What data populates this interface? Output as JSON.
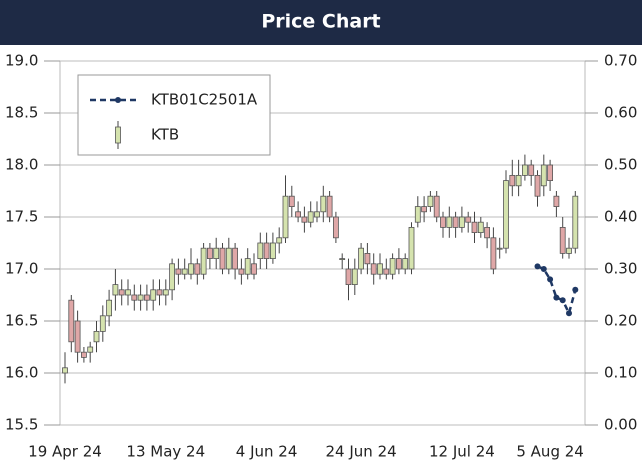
{
  "chart_data": {
    "type": "candlestick",
    "title": "Price Chart",
    "categories": [
      "19 Apr 24",
      null,
      null,
      null,
      null,
      null,
      null,
      null,
      null,
      null,
      null,
      null,
      null,
      null,
      null,
      null,
      "13 May 24",
      null,
      null,
      null,
      null,
      null,
      null,
      null,
      null,
      null,
      null,
      null,
      null,
      null,
      null,
      null,
      "4 Jun 24",
      null,
      null,
      null,
      null,
      null,
      null,
      null,
      null,
      null,
      null,
      null,
      null,
      null,
      null,
      "24 Jun 24",
      null,
      null,
      null,
      null,
      null,
      null,
      null,
      null,
      null,
      null,
      null,
      null,
      null,
      null,
      null,
      "12 Jul 24",
      null,
      null,
      null,
      null,
      null,
      null,
      null,
      null,
      null,
      null,
      null,
      null,
      null,
      "5 Aug 24",
      null,
      null,
      null,
      null
    ],
    "series": [
      {
        "name": "KTB01C2501A",
        "type": "line",
        "axis": "y2",
        "color": "#1f3864",
        "values": [
          null,
          null,
          null,
          null,
          null,
          null,
          null,
          null,
          null,
          null,
          null,
          null,
          null,
          null,
          null,
          null,
          null,
          null,
          null,
          null,
          null,
          null,
          null,
          null,
          null,
          null,
          null,
          null,
          null,
          null,
          null,
          null,
          null,
          null,
          null,
          null,
          null,
          null,
          null,
          null,
          null,
          null,
          null,
          null,
          null,
          null,
          null,
          null,
          null,
          null,
          null,
          null,
          null,
          null,
          null,
          null,
          null,
          null,
          null,
          null,
          null,
          null,
          null,
          null,
          null,
          null,
          null,
          null,
          null,
          null,
          null,
          null,
          null,
          null,
          null,
          0.305,
          0.3,
          0.28,
          0.245,
          0.24,
          0.215,
          0.26
        ]
      },
      {
        "name": "KTB",
        "type": "candlestick",
        "color_up": "#d5e3ae",
        "color_down": "#dfa7a7",
        "open": [
          16.0,
          16.7,
          16.5,
          16.2,
          16.2,
          16.3,
          16.4,
          16.55,
          16.75,
          16.8,
          16.75,
          16.75,
          16.7,
          16.75,
          16.7,
          16.8,
          16.75,
          16.8,
          17.0,
          16.95,
          16.95,
          17.05,
          16.95,
          17.2,
          17.1,
          17.2,
          17.0,
          17.2,
          17.0,
          16.95,
          17.05,
          17.1,
          17.25,
          17.1,
          17.25,
          17.3,
          17.7,
          17.55,
          17.5,
          17.45,
          17.5,
          17.55,
          17.7,
          17.5,
          17.1,
          17.0,
          16.85,
          17.0,
          17.15,
          17.05,
          16.95,
          17.0,
          16.95,
          17.1,
          17.0,
          17.0,
          17.45,
          17.6,
          17.6,
          17.7,
          17.5,
          17.4,
          17.5,
          17.4,
          17.5,
          17.45,
          17.35,
          17.4,
          17.3,
          17.2,
          17.2,
          17.9,
          17.8,
          17.9,
          18.0,
          17.9,
          17.8,
          18.0,
          17.7,
          17.4,
          17.15,
          17.2
        ],
        "high": [
          16.2,
          16.75,
          16.6,
          16.25,
          16.3,
          16.5,
          16.65,
          16.8,
          17.0,
          16.9,
          16.9,
          16.85,
          16.85,
          16.85,
          16.9,
          16.9,
          16.9,
          17.1,
          17.1,
          17.1,
          17.2,
          17.1,
          17.25,
          17.25,
          17.3,
          17.25,
          17.3,
          17.25,
          17.1,
          17.2,
          17.15,
          17.35,
          17.35,
          17.35,
          17.4,
          17.9,
          17.8,
          17.65,
          17.6,
          17.65,
          17.65,
          17.8,
          17.75,
          17.55,
          17.15,
          17.1,
          17.1,
          17.25,
          17.25,
          17.15,
          17.15,
          17.1,
          17.15,
          17.2,
          17.15,
          17.45,
          17.7,
          17.7,
          17.75,
          17.75,
          17.55,
          17.6,
          17.55,
          17.6,
          17.55,
          17.55,
          17.5,
          17.45,
          17.4,
          17.3,
          17.95,
          18.05,
          18.05,
          18.1,
          18.05,
          17.95,
          18.1,
          18.05,
          17.75,
          17.5,
          17.3,
          17.75
        ],
        "low": [
          15.9,
          16.2,
          16.1,
          16.1,
          16.1,
          16.2,
          16.3,
          16.45,
          16.6,
          16.65,
          16.65,
          16.6,
          16.6,
          16.6,
          16.6,
          16.65,
          16.65,
          16.7,
          16.85,
          16.9,
          16.9,
          16.85,
          16.9,
          17.0,
          17.0,
          16.95,
          16.95,
          16.9,
          16.85,
          16.9,
          16.9,
          17.0,
          17.0,
          17.05,
          17.15,
          17.25,
          17.5,
          17.45,
          17.35,
          17.4,
          17.45,
          17.45,
          17.45,
          17.25,
          17.0,
          16.7,
          16.75,
          16.95,
          16.95,
          16.85,
          16.9,
          16.9,
          16.9,
          16.95,
          16.95,
          16.95,
          17.4,
          17.45,
          17.55,
          17.45,
          17.3,
          17.3,
          17.3,
          17.35,
          17.35,
          17.25,
          17.3,
          17.2,
          16.95,
          17.1,
          17.15,
          17.7,
          17.7,
          17.85,
          17.8,
          17.6,
          17.7,
          17.75,
          17.5,
          17.1,
          17.1,
          17.15
        ],
        "close": [
          16.05,
          16.3,
          16.2,
          16.15,
          16.25,
          16.4,
          16.55,
          16.7,
          16.85,
          16.75,
          16.8,
          16.7,
          16.75,
          16.7,
          16.8,
          16.75,
          16.8,
          17.05,
          16.95,
          17.0,
          17.05,
          16.95,
          17.2,
          17.1,
          17.2,
          17.0,
          17.2,
          17.0,
          16.95,
          17.1,
          16.95,
          17.25,
          17.1,
          17.25,
          17.3,
          17.7,
          17.6,
          17.5,
          17.45,
          17.55,
          17.55,
          17.7,
          17.5,
          17.3,
          17.1,
          16.85,
          17.0,
          17.2,
          17.05,
          16.95,
          17.05,
          16.95,
          17.1,
          17.0,
          17.1,
          17.4,
          17.6,
          17.55,
          17.7,
          17.5,
          17.4,
          17.5,
          17.4,
          17.5,
          17.45,
          17.35,
          17.45,
          17.3,
          17.0,
          17.2,
          17.85,
          17.8,
          17.9,
          18.0,
          17.9,
          17.7,
          18.0,
          17.85,
          17.6,
          17.15,
          17.2,
          17.7
        ]
      }
    ],
    "ylim": [
      15.5,
      19.0
    ],
    "yticks": [
      15.5,
      {
        "value": 16,
        "label": "16.0"
      },
      16.5,
      {
        "value": 17,
        "label": "17.0"
      },
      17.5,
      {
        "value": 18,
        "label": "18.0"
      },
      18.5,
      {
        "value": 19,
        "label": "19.0"
      }
    ],
    "y2lim": [
      0,
      0.7
    ],
    "y2ticks": [
      {
        "value": 0,
        "label": "0.00"
      },
      {
        "value": 0.1,
        "label": "0.10"
      },
      {
        "value": 0.2,
        "label": "0.20"
      },
      {
        "value": 0.3,
        "label": "0.30"
      },
      {
        "value": 0.4,
        "label": "0.40"
      },
      {
        "value": 0.5,
        "label": "0.50"
      },
      {
        "value": 0.6,
        "label": "0.60"
      },
      {
        "value": 0.7,
        "label": "0.70"
      }
    ],
    "grid": true,
    "legend": "top-left"
  }
}
